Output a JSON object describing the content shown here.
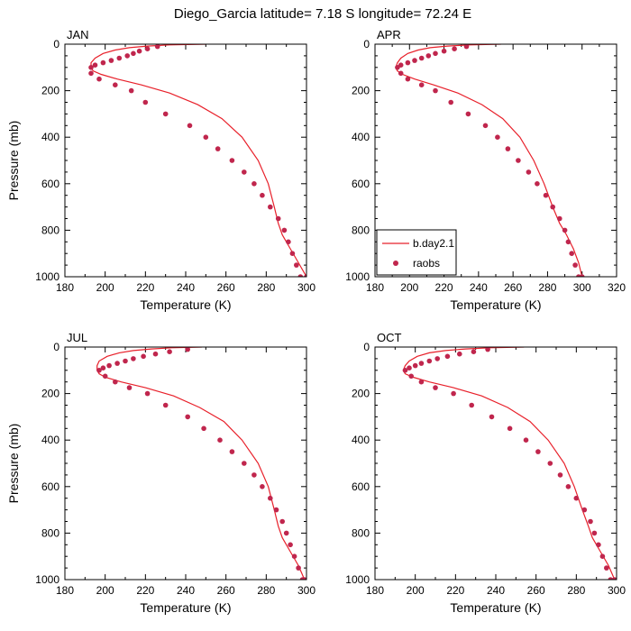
{
  "figure_title": "Diego_Garcia  latitude= 7.18 S longitude= 72.24 E",
  "colors": {
    "model_line": "#e8202a",
    "obs_marker": "#c0264d"
  },
  "legend": {
    "panel": "APR",
    "location": "bottom-left",
    "entries": [
      "b.day2.1",
      "raobs"
    ]
  },
  "chart_data": [
    {
      "type": "line",
      "title": "JAN",
      "xlabel": "Temperature (K)",
      "ylabel": "Pressure (mb)",
      "xlim": [
        180,
        300
      ],
      "ylim": [
        1000,
        0
      ],
      "xticks": [
        180,
        200,
        220,
        240,
        260,
        280,
        300
      ],
      "yticks": [
        0,
        200,
        400,
        600,
        800,
        1000
      ],
      "series": [
        {
          "name": "b.day2.1",
          "kind": "line",
          "t": [
            250,
            232,
            221,
            212,
            205,
            199,
            195,
            193,
            193,
            194,
            198,
            206,
            218,
            232,
            246,
            258,
            268,
            276,
            281,
            284,
            286,
            288,
            292,
            296,
            300
          ],
          "p": [
            0,
            3,
            8,
            15,
            25,
            40,
            60,
            80,
            100,
            115,
            130,
            150,
            175,
            210,
            260,
            320,
            400,
            500,
            600,
            700,
            770,
            820,
            880,
            940,
            1000
          ]
        },
        {
          "name": "raobs",
          "kind": "scatter",
          "t": [
            226,
            221,
            217,
            214,
            211,
            207,
            203,
            199,
            195,
            193,
            193,
            197,
            205,
            213,
            220,
            230,
            242,
            250,
            256,
            263,
            269,
            274,
            278,
            282,
            286,
            289,
            291,
            293,
            295,
            297,
            300
          ],
          "p": [
            10,
            20,
            30,
            40,
            50,
            60,
            70,
            80,
            90,
            100,
            125,
            150,
            175,
            200,
            250,
            300,
            350,
            400,
            450,
            500,
            550,
            600,
            650,
            700,
            750,
            800,
            850,
            900,
            950,
            1000,
            1000
          ]
        }
      ]
    },
    {
      "type": "line",
      "title": "APR",
      "xlabel": "Temperature (K)",
      "ylabel": "",
      "xlim": [
        180,
        320
      ],
      "ylim": [
        1000,
        0
      ],
      "xticks": [
        180,
        200,
        220,
        240,
        260,
        280,
        300,
        320
      ],
      "yticks": [
        0,
        200,
        400,
        600,
        800,
        1000
      ],
      "series": [
        {
          "name": "b.day2.1",
          "kind": "line",
          "t": [
            253,
            235,
            222,
            212,
            205,
            199,
            195,
            193,
            192,
            193,
            196,
            203,
            214,
            228,
            242,
            254,
            264,
            272,
            278,
            283,
            287,
            291,
            295,
            298,
            300
          ],
          "p": [
            0,
            3,
            8,
            15,
            25,
            40,
            60,
            80,
            100,
            115,
            130,
            150,
            175,
            210,
            260,
            320,
            400,
            500,
            600,
            700,
            770,
            820,
            880,
            940,
            1000
          ]
        },
        {
          "name": "raobs",
          "kind": "scatter",
          "t": [
            233,
            226,
            220,
            215,
            211,
            207,
            203,
            199,
            195,
            193,
            195,
            199,
            207,
            215,
            224,
            234,
            244,
            251,
            257,
            263,
            269,
            274,
            279,
            283,
            287,
            290,
            292,
            294,
            296,
            298,
            300
          ],
          "p": [
            10,
            20,
            30,
            40,
            50,
            60,
            70,
            80,
            90,
            100,
            125,
            150,
            175,
            200,
            250,
            300,
            350,
            400,
            450,
            500,
            550,
            600,
            650,
            700,
            750,
            800,
            850,
            900,
            950,
            1000,
            1000
          ]
        }
      ]
    },
    {
      "type": "line",
      "title": "JUL",
      "xlabel": "Temperature (K)",
      "ylabel": "Pressure (mb)",
      "xlim": [
        180,
        300
      ],
      "ylim": [
        1000,
        0
      ],
      "xticks": [
        180,
        200,
        220,
        240,
        260,
        280,
        300
      ],
      "yticks": [
        0,
        200,
        400,
        600,
        800,
        1000
      ],
      "series": [
        {
          "name": "b.day2.1",
          "kind": "line",
          "t": [
            248,
            233,
            223,
            214,
            207,
            201,
            197,
            196,
            196,
            197,
            200,
            208,
            220,
            234,
            247,
            259,
            268,
            276,
            281,
            284,
            286,
            288,
            292,
            296,
            299
          ],
          "p": [
            0,
            3,
            8,
            15,
            25,
            40,
            60,
            80,
            100,
            115,
            130,
            150,
            175,
            210,
            260,
            320,
            400,
            500,
            600,
            700,
            770,
            820,
            880,
            940,
            1000
          ]
        },
        {
          "name": "raobs",
          "kind": "scatter",
          "t": [
            241,
            232,
            225,
            219,
            214,
            210,
            206,
            202,
            199,
            197,
            200,
            205,
            212,
            221,
            230,
            241,
            249,
            257,
            263,
            269,
            274,
            278,
            282,
            285,
            288,
            290,
            292,
            294,
            296,
            298,
            299
          ],
          "p": [
            10,
            20,
            30,
            40,
            50,
            60,
            70,
            80,
            90,
            100,
            125,
            150,
            175,
            200,
            250,
            300,
            350,
            400,
            450,
            500,
            550,
            600,
            650,
            700,
            750,
            800,
            850,
            900,
            950,
            1000,
            1000
          ]
        }
      ]
    },
    {
      "type": "line",
      "title": "OCT",
      "xlabel": "Temperature (K)",
      "ylabel": "",
      "xlim": [
        180,
        300
      ],
      "ylim": [
        1000,
        0
      ],
      "xticks": [
        180,
        200,
        220,
        240,
        260,
        280,
        300
      ],
      "yticks": [
        0,
        200,
        400,
        600,
        800,
        1000
      ],
      "series": [
        {
          "name": "b.day2.1",
          "kind": "line",
          "t": [
            254,
            237,
            225,
            215,
            207,
            201,
            197,
            195,
            194,
            195,
            199,
            207,
            219,
            233,
            246,
            257,
            266,
            274,
            279,
            283,
            286,
            288,
            292,
            296,
            299
          ],
          "p": [
            0,
            3,
            8,
            15,
            25,
            40,
            60,
            80,
            100,
            115,
            130,
            150,
            175,
            210,
            260,
            320,
            400,
            500,
            600,
            700,
            770,
            820,
            880,
            940,
            1000
          ]
        },
        {
          "name": "raobs",
          "kind": "scatter",
          "t": [
            236,
            229,
            222,
            216,
            211,
            207,
            203,
            200,
            197,
            195,
            198,
            203,
            210,
            219,
            228,
            238,
            247,
            255,
            261,
            267,
            272,
            276,
            280,
            284,
            287,
            289,
            291,
            293,
            295,
            297,
            299
          ],
          "p": [
            10,
            20,
            30,
            40,
            50,
            60,
            70,
            80,
            90,
            100,
            125,
            150,
            175,
            200,
            250,
            300,
            350,
            400,
            450,
            500,
            550,
            600,
            650,
            700,
            750,
            800,
            850,
            900,
            950,
            1000,
            1000
          ]
        }
      ]
    }
  ]
}
